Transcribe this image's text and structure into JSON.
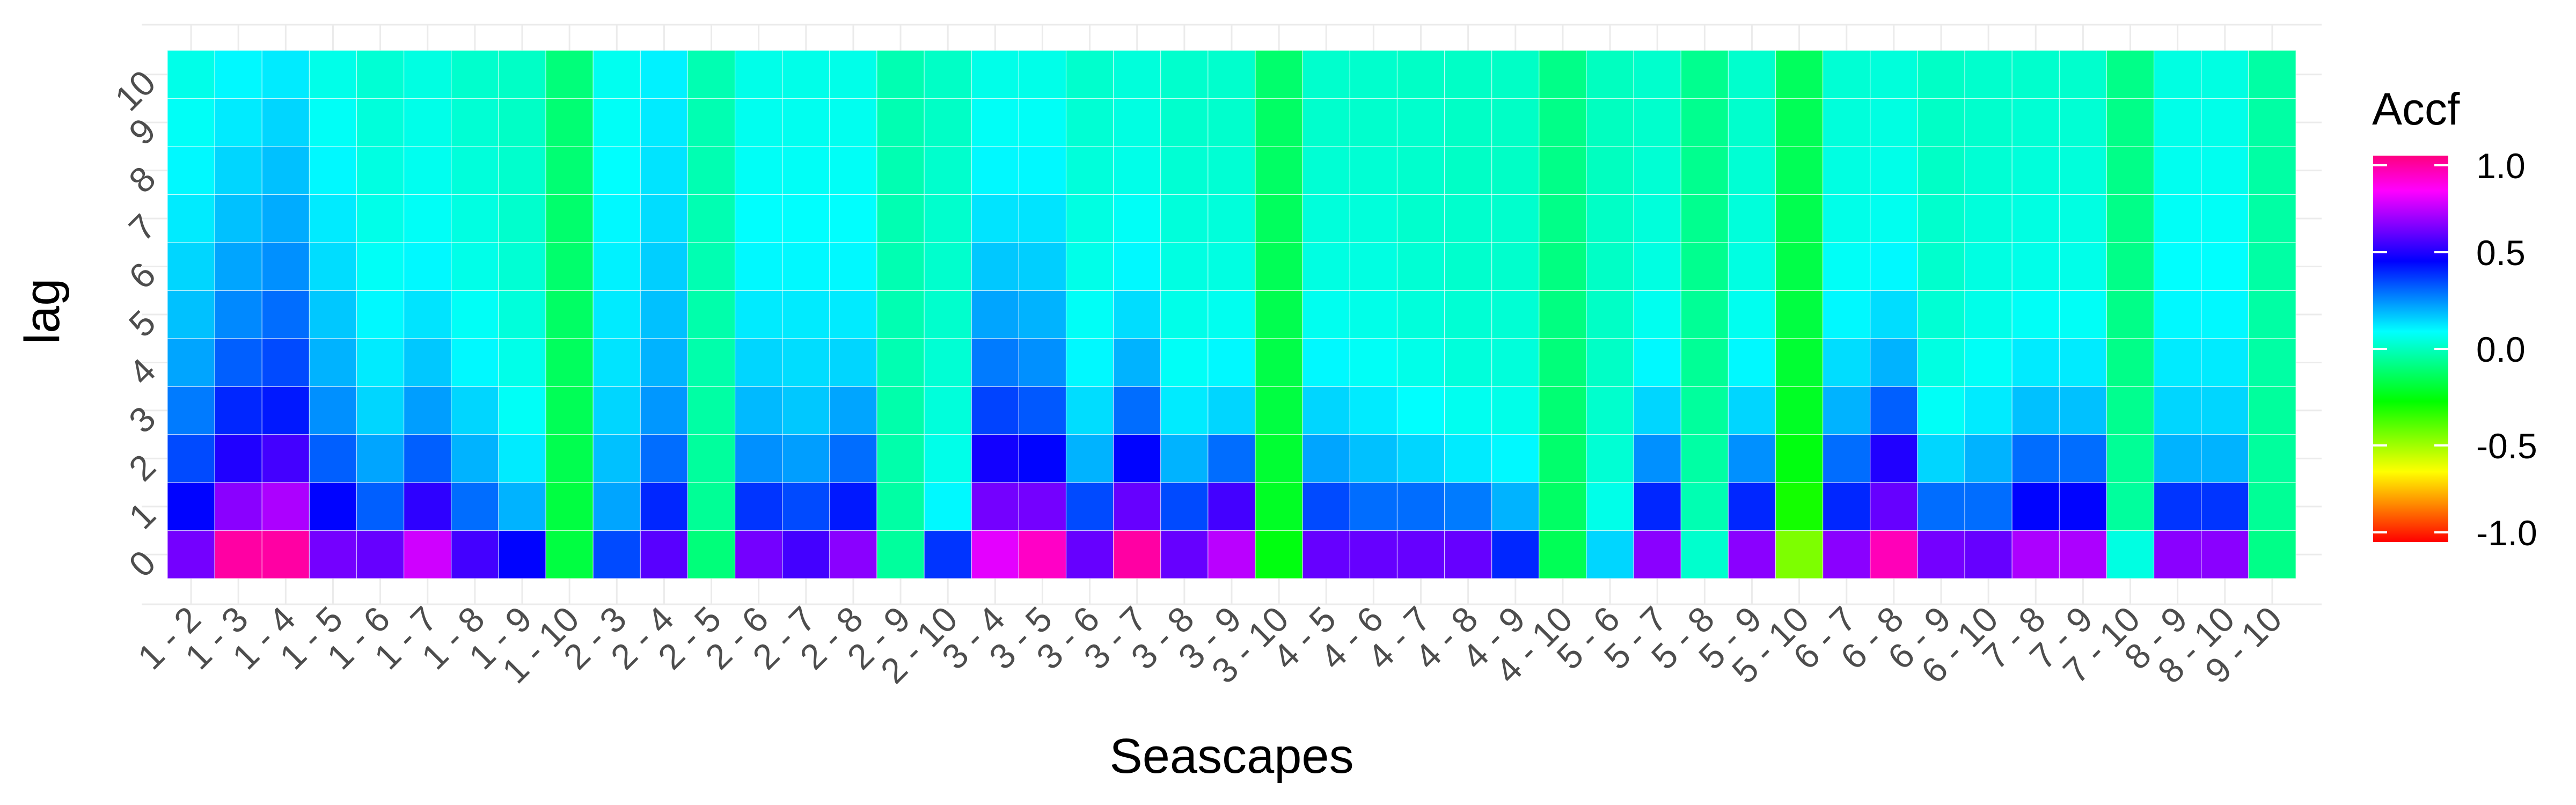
{
  "chart_data": {
    "type": "heatmap",
    "xlabel": "Seascapes",
    "ylabel": "lag",
    "x_categories": [
      "1 - 2",
      "1 - 3",
      "1 - 4",
      "1 - 5",
      "1 - 6",
      "1 - 7",
      "1 - 8",
      "1 - 9",
      "1 - 10",
      "2 - 3",
      "2 - 4",
      "2 - 5",
      "2 - 6",
      "2 - 7",
      "2 - 8",
      "2 - 9",
      "2 - 10",
      "3 - 4",
      "3 - 5",
      "3 - 6",
      "3 - 7",
      "3 - 8",
      "3 - 9",
      "3 - 10",
      "4 - 5",
      "4 - 6",
      "4 - 7",
      "4 - 8",
      "4 - 9",
      "4 - 10",
      "5 - 6",
      "5 - 7",
      "5 - 8",
      "5 - 9",
      "5 - 10",
      "6 - 7",
      "6 - 8",
      "6 - 9",
      "6 - 10",
      "7 - 8",
      "7 - 9",
      "7 - 10",
      "8 - 9",
      "8 - 10",
      "9 - 10"
    ],
    "y_categories": [
      "0",
      "1",
      "2",
      "3",
      "4",
      "5",
      "6",
      "7",
      "8",
      "9",
      "10"
    ],
    "values": [
      [
        0.62,
        0.45,
        0.35,
        0.28,
        0.22,
        0.18,
        0.15,
        0.12,
        0.1,
        0.08,
        0.06
      ],
      [
        0.95,
        0.65,
        0.5,
        0.4,
        0.32,
        0.26,
        0.22,
        0.18,
        0.15,
        0.12,
        0.1
      ],
      [
        0.95,
        0.7,
        0.55,
        0.42,
        0.35,
        0.3,
        0.25,
        0.21,
        0.18,
        0.15,
        0.12
      ],
      [
        0.62,
        0.45,
        0.32,
        0.25,
        0.2,
        0.17,
        0.14,
        0.12,
        0.1,
        0.08,
        0.06
      ],
      [
        0.6,
        0.32,
        0.22,
        0.15,
        0.12,
        0.1,
        0.08,
        0.06,
        0.05,
        0.04,
        0.03
      ],
      [
        0.75,
        0.52,
        0.32,
        0.23,
        0.17,
        0.13,
        0.1,
        0.08,
        0.07,
        0.06,
        0.05
      ],
      [
        0.55,
        0.3,
        0.2,
        0.15,
        0.1,
        0.08,
        0.06,
        0.05,
        0.04,
        0.03,
        0.02
      ],
      [
        0.45,
        0.2,
        0.12,
        0.08,
        0.06,
        0.04,
        0.03,
        0.02,
        0.02,
        0.01,
        0.01
      ],
      [
        -0.18,
        -0.18,
        -0.16,
        -0.15,
        -0.14,
        -0.13,
        -0.12,
        -0.12,
        -0.11,
        -0.11,
        -0.1
      ],
      [
        0.35,
        0.22,
        0.18,
        0.15,
        0.13,
        0.12,
        0.11,
        0.1,
        0.09,
        0.08,
        0.07
      ],
      [
        0.58,
        0.4,
        0.3,
        0.24,
        0.2,
        0.18,
        0.16,
        0.14,
        0.13,
        0.12,
        0.11
      ],
      [
        -0.1,
        -0.06,
        -0.05,
        -0.04,
        -0.03,
        -0.03,
        -0.02,
        -0.02,
        -0.02,
        -0.02,
        -0.02
      ],
      [
        0.62,
        0.38,
        0.25,
        0.19,
        0.15,
        0.12,
        0.1,
        0.09,
        0.08,
        0.07,
        0.06
      ],
      [
        0.55,
        0.35,
        0.23,
        0.17,
        0.14,
        0.12,
        0.1,
        0.09,
        0.08,
        0.07,
        0.06
      ],
      [
        0.65,
        0.42,
        0.3,
        0.22,
        0.15,
        0.12,
        0.1,
        0.09,
        0.08,
        0.07,
        0.06
      ],
      [
        -0.05,
        -0.04,
        -0.03,
        -0.03,
        -0.02,
        -0.02,
        -0.02,
        -0.02,
        -0.02,
        -0.02,
        -0.02
      ],
      [
        0.38,
        0.1,
        0.06,
        0.04,
        0.03,
        0.02,
        0.02,
        0.02,
        0.02,
        0.01,
        0.01
      ],
      [
        0.78,
        0.62,
        0.48,
        0.36,
        0.28,
        0.22,
        0.17,
        0.13,
        0.1,
        0.08,
        0.06
      ],
      [
        0.9,
        0.62,
        0.45,
        0.33,
        0.25,
        0.2,
        0.16,
        0.13,
        0.1,
        0.08,
        0.06
      ],
      [
        0.6,
        0.35,
        0.2,
        0.14,
        0.1,
        0.08,
        0.06,
        0.05,
        0.04,
        0.03,
        0.02
      ],
      [
        0.95,
        0.6,
        0.45,
        0.3,
        0.2,
        0.14,
        0.1,
        0.08,
        0.06,
        0.05,
        0.04
      ],
      [
        0.6,
        0.35,
        0.2,
        0.12,
        0.08,
        0.06,
        0.05,
        0.04,
        0.03,
        0.02,
        0.02
      ],
      [
        0.72,
        0.55,
        0.3,
        0.15,
        0.1,
        0.07,
        0.05,
        0.04,
        0.03,
        0.02,
        0.02
      ],
      [
        -0.25,
        -0.22,
        -0.2,
        -0.18,
        -0.17,
        -0.16,
        -0.15,
        -0.14,
        -0.13,
        -0.13,
        -0.12
      ],
      [
        0.6,
        0.35,
        0.22,
        0.15,
        0.1,
        0.07,
        0.05,
        0.04,
        0.03,
        0.02,
        0.02
      ],
      [
        0.6,
        0.3,
        0.18,
        0.12,
        0.08,
        0.06,
        0.05,
        0.04,
        0.03,
        0.02,
        0.02
      ],
      [
        0.6,
        0.3,
        0.15,
        0.09,
        0.06,
        0.04,
        0.03,
        0.02,
        0.02,
        0.02,
        0.01
      ],
      [
        0.6,
        0.28,
        0.12,
        0.07,
        0.04,
        0.03,
        0.02,
        0.02,
        0.01,
        0.01,
        0.01
      ],
      [
        0.4,
        0.2,
        0.1,
        0.06,
        0.04,
        0.03,
        0.02,
        0.02,
        0.01,
        0.01,
        0.01
      ],
      [
        -0.15,
        -0.13,
        -0.12,
        -0.11,
        -0.1,
        -0.09,
        -0.09,
        -0.08,
        -0.08,
        -0.08,
        -0.08
      ],
      [
        0.15,
        0.06,
        0.03,
        0.02,
        0.01,
        0.01,
        0.01,
        0.01,
        0.0,
        0.0,
        0.0
      ],
      [
        0.65,
        0.4,
        0.25,
        0.15,
        0.1,
        0.07,
        0.05,
        0.04,
        0.03,
        0.02,
        0.02
      ],
      [
        0.02,
        -0.02,
        -0.04,
        -0.05,
        -0.06,
        -0.06,
        -0.07,
        -0.07,
        -0.07,
        -0.07,
        -0.07
      ],
      [
        0.65,
        0.4,
        0.25,
        0.15,
        0.1,
        0.07,
        0.05,
        0.04,
        0.03,
        0.02,
        0.02
      ],
      [
        -0.45,
        -0.3,
        -0.25,
        -0.22,
        -0.2,
        -0.18,
        -0.17,
        -0.16,
        -0.15,
        -0.15,
        -0.14
      ],
      [
        0.65,
        0.4,
        0.3,
        0.2,
        0.14,
        0.1,
        0.08,
        0.06,
        0.05,
        0.04,
        0.03
      ],
      [
        0.92,
        0.6,
        0.5,
        0.32,
        0.2,
        0.14,
        0.1,
        0.07,
        0.06,
        0.05,
        0.04
      ],
      [
        0.62,
        0.3,
        0.15,
        0.08,
        0.05,
        0.03,
        0.02,
        0.02,
        0.01,
        0.01,
        0.01
      ],
      [
        0.6,
        0.3,
        0.2,
        0.12,
        0.08,
        0.06,
        0.05,
        0.04,
        0.03,
        0.02,
        0.02
      ],
      [
        0.7,
        0.45,
        0.3,
        0.18,
        0.12,
        0.08,
        0.06,
        0.05,
        0.04,
        0.03,
        0.02
      ],
      [
        0.7,
        0.45,
        0.3,
        0.18,
        0.12,
        0.08,
        0.06,
        0.05,
        0.04,
        0.03,
        0.02
      ],
      [
        0.05,
        -0.05,
        -0.06,
        -0.07,
        -0.08,
        -0.08,
        -0.08,
        -0.08,
        -0.08,
        -0.08,
        -0.08
      ],
      [
        0.65,
        0.38,
        0.2,
        0.15,
        0.12,
        0.1,
        0.09,
        0.08,
        0.07,
        0.06,
        0.05
      ],
      [
        0.65,
        0.38,
        0.2,
        0.15,
        0.12,
        0.1,
        0.09,
        0.08,
        0.07,
        0.06,
        0.05
      ],
      [
        -0.08,
        -0.06,
        -0.05,
        -0.05,
        -0.04,
        -0.04,
        -0.04,
        -0.04,
        -0.04,
        -0.04,
        -0.04
      ]
    ],
    "value_range": [
      -1.0,
      1.0
    ],
    "legend": {
      "title": "Accf",
      "ticks": [
        "1.0",
        "0.5",
        "0.0",
        "-0.5",
        "-1.0"
      ],
      "tick_values": [
        1.0,
        0.5,
        0.0,
        -0.5,
        -1.0
      ],
      "placement": "right"
    },
    "colorscale": [
      "#ff0000",
      "#ff8000",
      "#ffff00",
      "#80ff00",
      "#00ff00",
      "#00ff80",
      "#00ffff",
      "#0080ff",
      "#0000ff",
      "#8000ff",
      "#ff00ff",
      "#ff0080"
    ],
    "grid": true
  }
}
